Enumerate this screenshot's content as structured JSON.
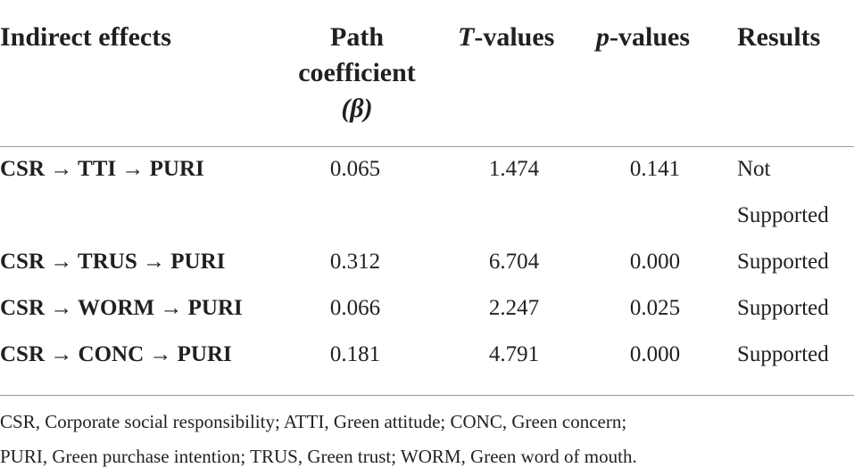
{
  "table": {
    "headers": {
      "indirect": "Indirect effects",
      "path_line1": "Path",
      "path_line2": "coefficient",
      "path_line3": "(β)",
      "t_values": "T-values",
      "p_values": "p-values",
      "results": "Results"
    },
    "rows": [
      {
        "effect": "CSR → TTI → PURI",
        "beta": "0.065",
        "t": "1.474",
        "p": "0.141",
        "result_line1": "Not",
        "result_line2": "Supported"
      },
      {
        "effect": "CSR → TRUS → PURI",
        "beta": "0.312",
        "t": "6.704",
        "p": "0.000",
        "result_line1": "Supported",
        "result_line2": ""
      },
      {
        "effect": "CSR → WORM → PURI",
        "beta": "0.066",
        "t": "2.247",
        "p": "0.025",
        "result_line1": "Supported",
        "result_line2": ""
      },
      {
        "effect": "CSR → CONC → PURI",
        "beta": "0.181",
        "t": "4.791",
        "p": "0.000",
        "result_line1": "Supported",
        "result_line2": ""
      }
    ],
    "footnote_line1": "CSR, Corporate social responsibility; ATTI, Green attitude; CONC, Green concern;",
    "footnote_line2": "PURI, Green purchase intention; TRUS, Green trust; WORM, Green word of mouth."
  }
}
